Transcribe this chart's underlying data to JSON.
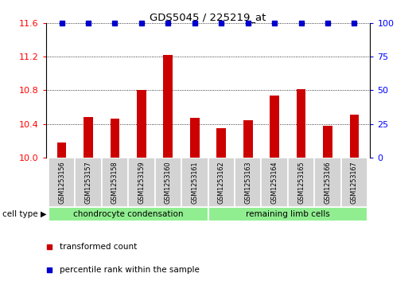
{
  "title": "GDS5045 / 225219_at",
  "samples": [
    "GSM1253156",
    "GSM1253157",
    "GSM1253158",
    "GSM1253159",
    "GSM1253160",
    "GSM1253161",
    "GSM1253162",
    "GSM1253163",
    "GSM1253164",
    "GSM1253165",
    "GSM1253166",
    "GSM1253167"
  ],
  "transformed_count": [
    10.18,
    10.48,
    10.46,
    10.8,
    11.22,
    10.47,
    10.35,
    10.44,
    10.74,
    10.81,
    10.38,
    10.51
  ],
  "percentile_rank": [
    100,
    100,
    100,
    100,
    100,
    100,
    100,
    100,
    100,
    100,
    100,
    100
  ],
  "bar_color": "#cc0000",
  "dot_color": "#0000cc",
  "ylim_left": [
    10.0,
    11.6
  ],
  "ylim_right": [
    0,
    100
  ],
  "yticks_left": [
    10.0,
    10.4,
    10.8,
    11.2,
    11.6
  ],
  "yticks_right": [
    0,
    25,
    50,
    75,
    100
  ],
  "group1_label": "chondrocyte condensation",
  "group2_label": "remaining limb cells",
  "group1_count": 6,
  "group2_count": 6,
  "cell_type_label": "cell type",
  "legend1": "transformed count",
  "legend2": "percentile rank within the sample",
  "group1_bg": "#90ee90",
  "group2_bg": "#90ee90",
  "sample_bg": "#d3d3d3",
  "bar_width": 0.35
}
